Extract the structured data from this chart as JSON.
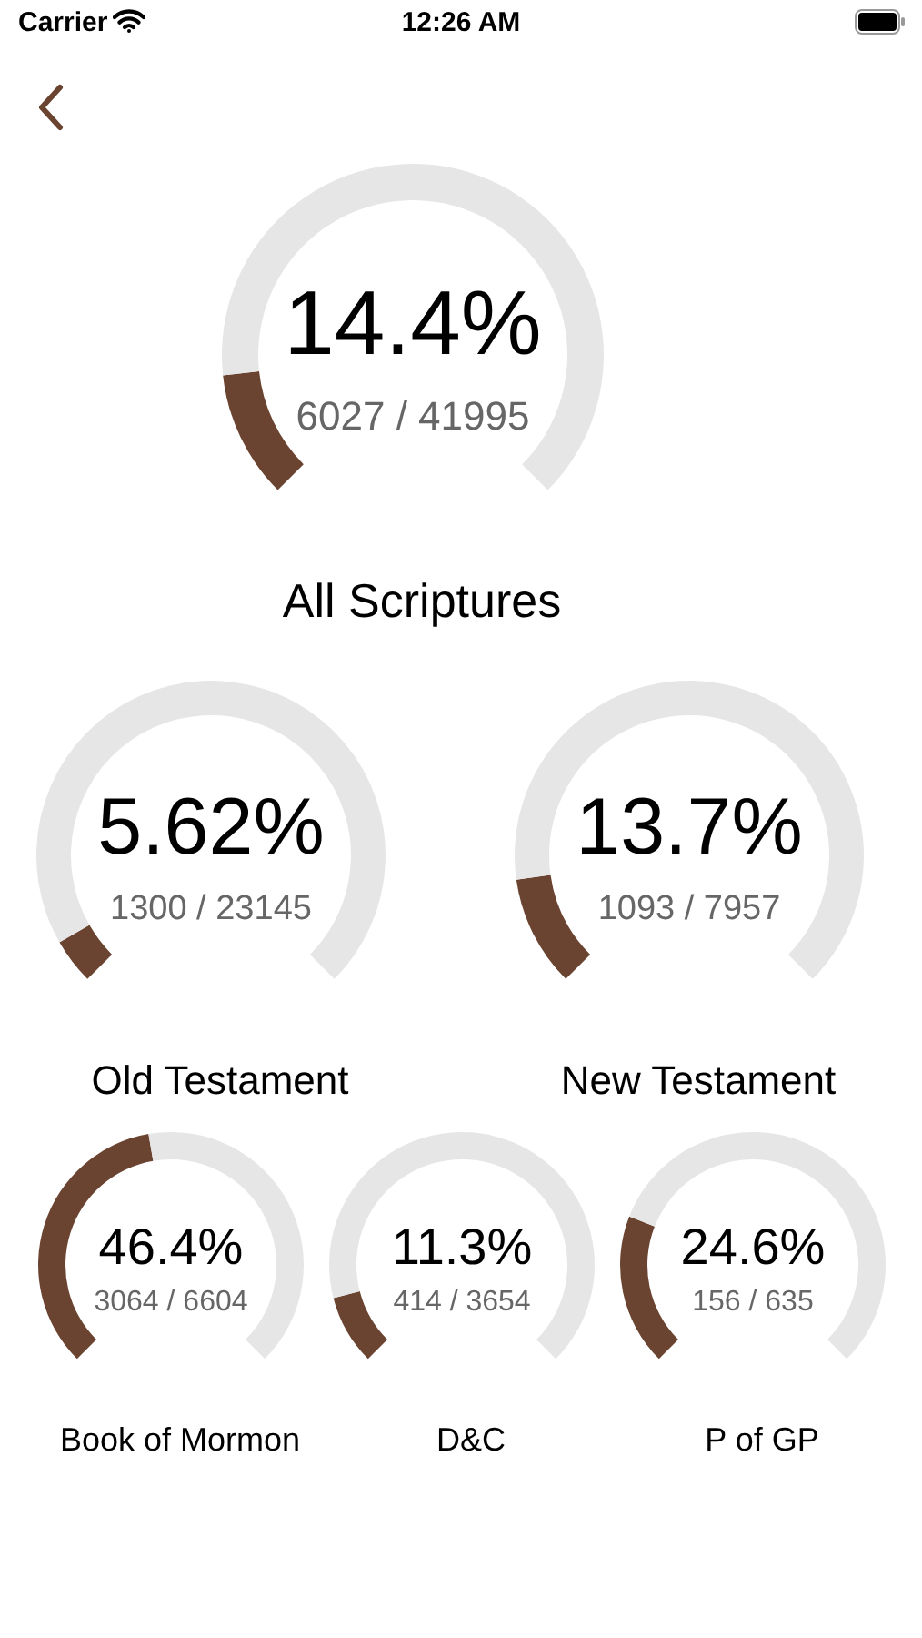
{
  "chart_data": [
    {
      "type": "other",
      "annotations": [
        "Carrier",
        "12:26 AM"
      ]
    },
    {
      "type": "donut",
      "title": "All Scriptures",
      "categories": [
        null,
        null
      ],
      "values": [
        14.4,
        85.6
      ],
      "colors": [
        "#6b4431",
        "#e6e6e6"
      ],
      "annotations": [
        "14.4%",
        "6027 / 41995"
      ]
    },
    {
      "type": "donut",
      "title": "Old Testament",
      "categories": [
        null,
        null
      ],
      "values": [
        5.62,
        94.38
      ],
      "colors": [
        "#6b4431",
        "#e6e6e6"
      ],
      "annotations": [
        "5.62%",
        "1300 / 23145"
      ]
    },
    {
      "type": "donut",
      "title": "New Testament",
      "categories": [
        null,
        null
      ],
      "values": [
        13.7,
        86.3
      ],
      "colors": [
        "#6b4431",
        "#e6e6e6"
      ],
      "annotations": [
        "13.7%",
        "1093 / 7957"
      ]
    },
    {
      "type": "donut",
      "title": "Book of Mormon",
      "categories": [
        null,
        null
      ],
      "values": [
        46.4,
        53.6
      ],
      "colors": [
        "#6b4431",
        "#e6e6e6"
      ],
      "annotations": [
        "46.4%",
        "3064 / 6604"
      ]
    },
    {
      "type": "donut",
      "title": "D&C",
      "categories": [
        null,
        null
      ],
      "values": [
        11.3,
        88.7
      ],
      "colors": [
        "#6b4431",
        "#e6e6e6"
      ],
      "annotations": [
        "11.3%",
        "414 / 3654"
      ]
    },
    {
      "type": "donut",
      "title": "P of GP",
      "categories": [
        null,
        null
      ],
      "values": [
        24.6,
        75.4
      ],
      "colors": [
        "#6b4431",
        "#e6e6e6"
      ],
      "annotations": [
        "24.6%",
        "156 / 635"
      ]
    }
  ]
}
